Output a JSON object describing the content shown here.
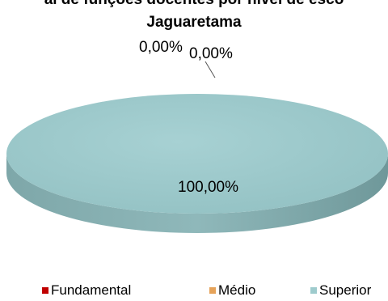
{
  "chart_data": {
    "type": "pie",
    "title": [
      "al de funções docentes por nível de esco",
      "Jaguaretama"
    ],
    "categories": [
      "Fundamental",
      "Médio",
      "Superior"
    ],
    "values": [
      0,
      0,
      100
    ],
    "data_labels": [
      "0,00%",
      "0,00%",
      "100,00%"
    ],
    "colors": [
      "#c00000",
      "#e6a35a",
      "#9ecbcd"
    ],
    "legend": "bottom",
    "style": "3d-flat"
  }
}
